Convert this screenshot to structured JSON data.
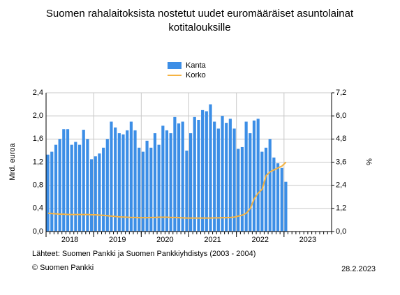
{
  "chart_data": {
    "type": "bar-line",
    "title": [
      "Suomen rahalaitoksista nostetut uudet euromääräiset asuntolainat",
      "kotitalouksille"
    ],
    "ylabel": "Mrd. euroa",
    "y2label": "%",
    "source": "Lähteet: Suomen Pankki ja Suomen Pankkiyhdistys (2003 - 2004)",
    "copyright": "© Suomen Pankki",
    "date": "28.2.2023",
    "legend": "top",
    "grid": true,
    "xlim": [
      2018,
      2024
    ],
    "xticks": [
      2018,
      2019,
      2020,
      2021,
      2022,
      2023
    ],
    "ylim": [
      0,
      2.4
    ],
    "yticks": [
      {
        "value": 0,
        "label": "0,0"
      },
      {
        "value": 0.4,
        "label": "0,4"
      },
      {
        "value": 0.8,
        "label": "0,8"
      },
      {
        "value": 1.2,
        "label": "1,2"
      },
      {
        "value": 1.6,
        "label": "1,6"
      },
      {
        "value": 2.0,
        "label": "2,0"
      },
      {
        "value": 2.4,
        "label": "2,4"
      }
    ],
    "y2lim": [
      0,
      7.2
    ],
    "y2ticks": [
      {
        "value": 0,
        "label": "0,0"
      },
      {
        "value": 1.2,
        "label": "1,2"
      },
      {
        "value": 2.4,
        "label": "2,4"
      },
      {
        "value": 3.6,
        "label": "3,6"
      },
      {
        "value": 4.8,
        "label": "4,8"
      },
      {
        "value": 6.0,
        "label": "6,0"
      },
      {
        "value": 7.2,
        "label": "7,2"
      }
    ],
    "x": [
      2018,
      2018.083,
      2018.167,
      2018.25,
      2018.333,
      2018.417,
      2018.5,
      2018.583,
      2018.667,
      2018.75,
      2018.833,
      2018.917,
      2019,
      2019.083,
      2019.167,
      2019.25,
      2019.333,
      2019.417,
      2019.5,
      2019.583,
      2019.667,
      2019.75,
      2019.833,
      2019.917,
      2020,
      2020.083,
      2020.167,
      2020.25,
      2020.333,
      2020.417,
      2020.5,
      2020.583,
      2020.667,
      2020.75,
      2020.833,
      2020.917,
      2021,
      2021.083,
      2021.167,
      2021.25,
      2021.333,
      2021.417,
      2021.5,
      2021.583,
      2021.667,
      2021.75,
      2021.833,
      2021.917,
      2022,
      2022.083,
      2022.167,
      2022.25,
      2022.333,
      2022.417,
      2022.5,
      2022.583,
      2022.667,
      2022.75,
      2022.833,
      2022.917,
      2023
    ],
    "series": [
      {
        "name": "Kanta",
        "color": "#3c8ee6",
        "kind": "bar",
        "values": [
          1.33,
          1.38,
          1.5,
          1.6,
          1.77,
          1.77,
          1.5,
          1.55,
          1.5,
          1.76,
          1.6,
          1.25,
          1.3,
          1.35,
          1.45,
          1.6,
          1.9,
          1.8,
          1.7,
          1.68,
          1.75,
          1.9,
          1.75,
          1.45,
          1.38,
          1.57,
          1.45,
          1.7,
          1.5,
          1.83,
          1.75,
          1.7,
          1.98,
          1.87,
          1.9,
          1.4,
          1.7,
          1.98,
          1.93,
          2.1,
          2.08,
          2.2,
          1.9,
          1.78,
          2.0,
          1.88,
          1.95,
          1.78,
          1.43,
          1.46,
          1.9,
          1.7,
          1.92,
          1.95,
          1.38,
          1.45,
          1.6,
          1.28,
          1.18,
          1.1,
          0.86
        ]
      },
      {
        "name": "Korko",
        "color": "#f5b342",
        "kind": "line",
        "axis": "y2",
        "values": [
          0.95,
          0.93,
          0.92,
          0.9,
          0.9,
          0.88,
          0.88,
          0.88,
          0.88,
          0.88,
          0.88,
          0.87,
          0.87,
          0.85,
          0.84,
          0.82,
          0.8,
          0.78,
          0.76,
          0.75,
          0.74,
          0.73,
          0.73,
          0.72,
          0.72,
          0.72,
          0.73,
          0.73,
          0.74,
          0.74,
          0.74,
          0.73,
          0.73,
          0.72,
          0.71,
          0.7,
          0.7,
          0.7,
          0.7,
          0.7,
          0.7,
          0.7,
          0.71,
          0.71,
          0.72,
          0.72,
          0.73,
          0.75,
          0.8,
          0.85,
          0.95,
          1.2,
          1.7,
          2.0,
          2.2,
          2.9,
          3.1,
          3.2,
          3.3,
          3.4,
          3.6
        ]
      }
    ]
  }
}
